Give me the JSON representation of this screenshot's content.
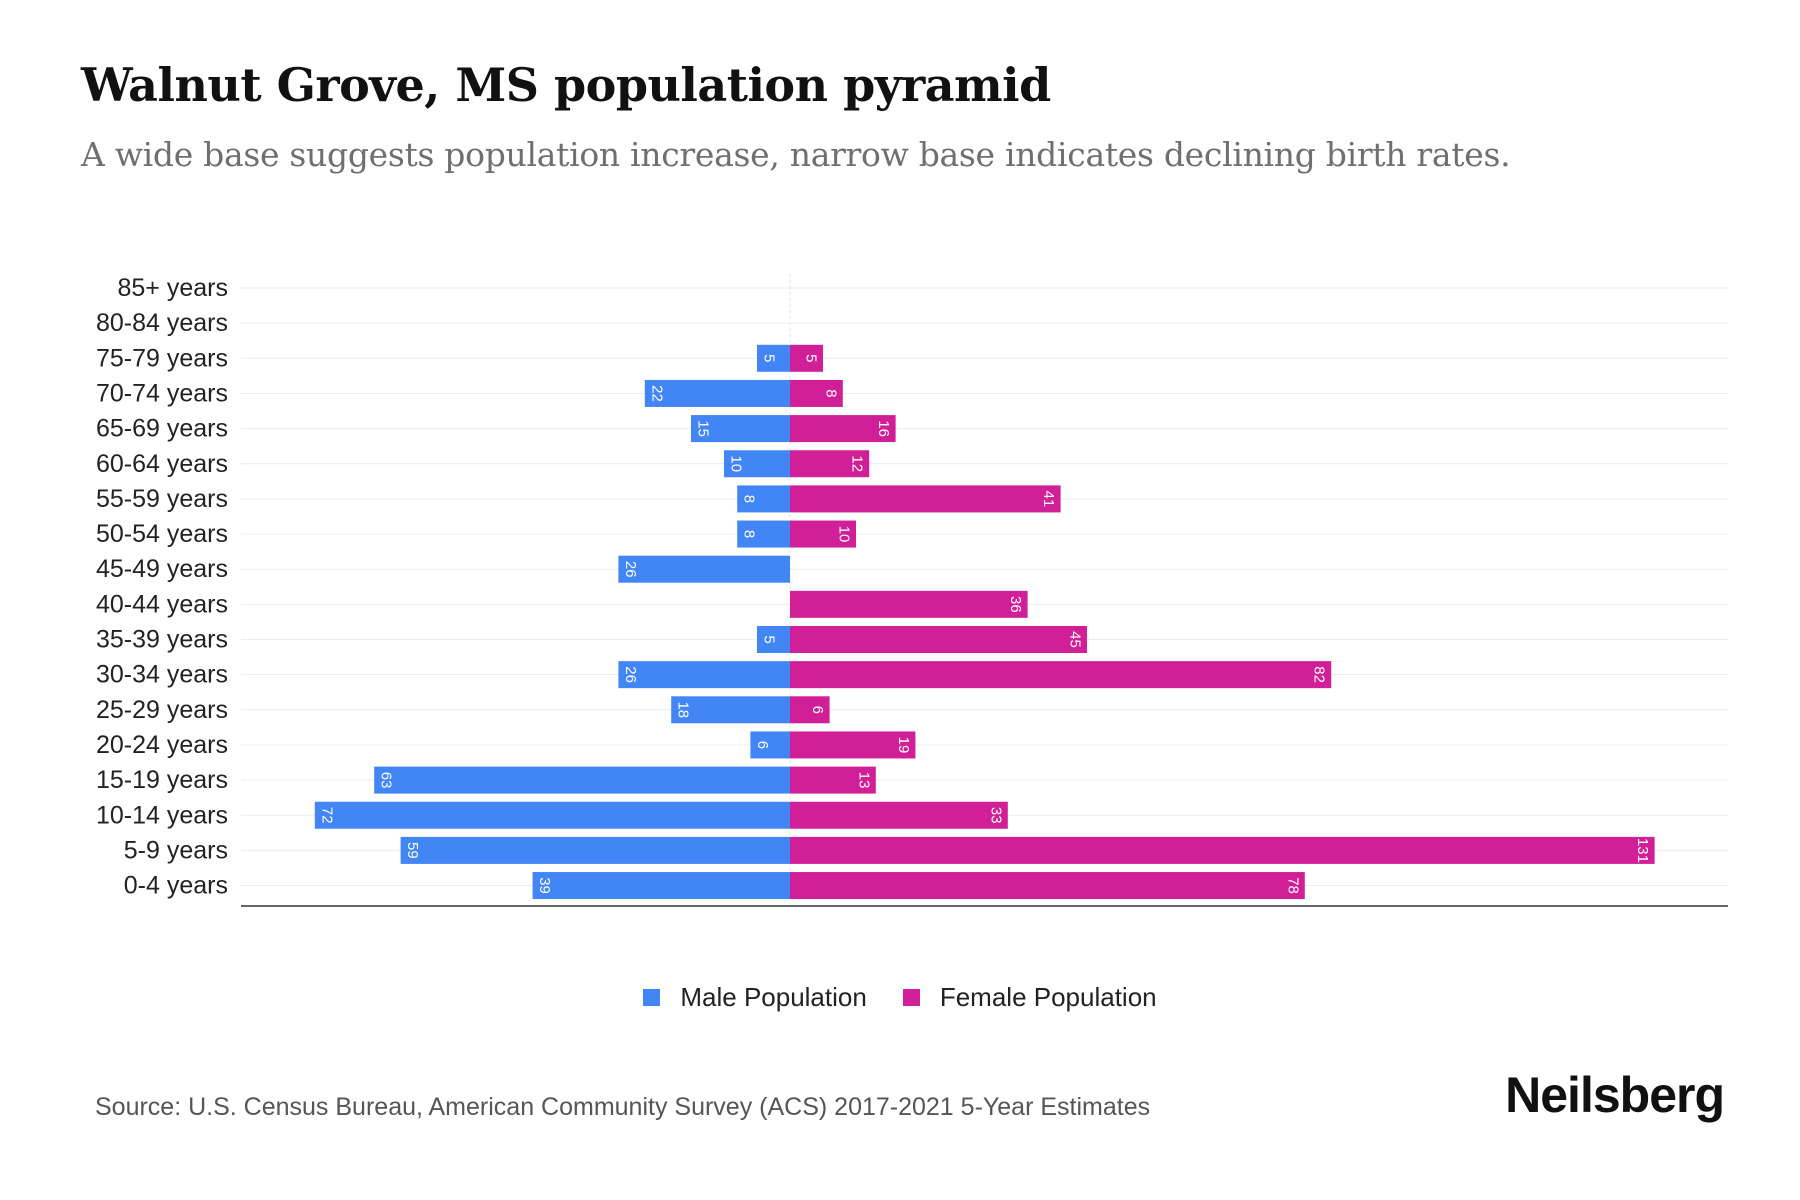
{
  "header": {
    "title": "Walnut Grove, MS population pyramid",
    "subtitle": "A wide base suggests population increase, narrow base indicates declining birth rates."
  },
  "chart_data": {
    "type": "bar",
    "orientation": "horizontal-diverging",
    "title": "Walnut Grove, MS population pyramid",
    "categories": [
      "85+ years",
      "80-84 years",
      "75-79 years",
      "70-74 years",
      "65-69 years",
      "60-64 years",
      "55-59 years",
      "50-54 years",
      "45-49 years",
      "40-44 years",
      "35-39 years",
      "30-34 years",
      "25-29 years",
      "20-24 years",
      "15-19 years",
      "10-14 years",
      "5-9 years",
      "0-4 years"
    ],
    "series": [
      {
        "name": "Male Population",
        "color": "#4285f4",
        "values": [
          0,
          0,
          5,
          22,
          15,
          10,
          8,
          8,
          26,
          0,
          5,
          26,
          18,
          6,
          63,
          72,
          59,
          39
        ]
      },
      {
        "name": "Female Population",
        "color": "#d11f97",
        "values": [
          0,
          0,
          5,
          8,
          16,
          12,
          41,
          10,
          0,
          36,
          45,
          82,
          6,
          19,
          13,
          33,
          131,
          78
        ]
      }
    ],
    "legend_position": "bottom-center",
    "grid": true
  },
  "legend": {
    "male_label": "Male Population",
    "female_label": "Female Population",
    "male_color": "#4285f4",
    "female_color": "#d11f97"
  },
  "footer": {
    "source": "Source: U.S. Census Bureau, American Community Survey (ACS) 2017-2021 5-Year Estimates",
    "brand": "Neilsberg"
  }
}
